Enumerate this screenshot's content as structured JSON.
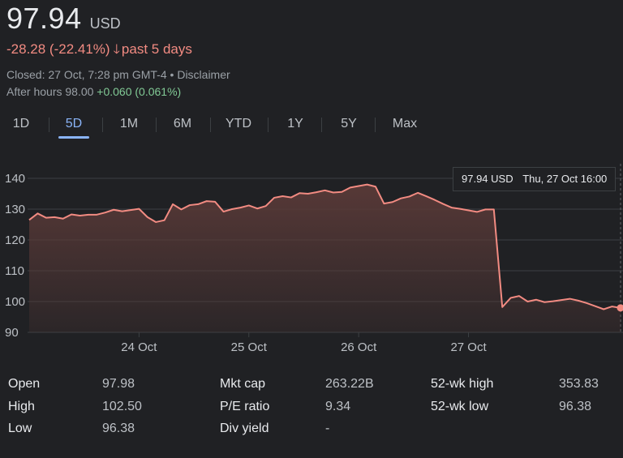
{
  "quote": {
    "price": "97.94",
    "currency": "USD",
    "change": "-28.28 (-22.41%)",
    "period": "past 5 days",
    "closed_text": "Closed: 27 Oct, 7:28 pm GMT-4",
    "disclaimer": "Disclaimer",
    "after_hours_label": "After hours 98.00",
    "after_hours_change": "+0.060 (0.061%)"
  },
  "tabs": [
    "1D",
    "5D",
    "1M",
    "6M",
    "YTD",
    "1Y",
    "5Y",
    "Max"
  ],
  "active_tab": "5D",
  "tooltip": {
    "price": "97.94 USD",
    "time": "Thu, 27 Oct 16:00"
  },
  "colors": {
    "line": "#f28b82",
    "fill_top": "#5a3a38",
    "grid": "#3c4043",
    "accent": "#8ab4f8",
    "positive": "#81c995",
    "negative": "#f28b82"
  },
  "chart_data": {
    "type": "area",
    "y_ticks": [
      "140",
      "130",
      "120",
      "110",
      "100",
      "90"
    ],
    "ylim": [
      90,
      140
    ],
    "x_tick_labels": [
      "24 Oct",
      "25 Oct",
      "26 Oct",
      "27 Oct"
    ],
    "x_tick_index": [
      13,
      26,
      39,
      52
    ],
    "series": [
      {
        "values": [
          126.5,
          128.6,
          127.2,
          127.4,
          126.9,
          128.3,
          127.9,
          128.2,
          128.2,
          128.9,
          129.8,
          129.3,
          129.7,
          130.1,
          127.4,
          125.8,
          126.4,
          131.6,
          129.9,
          131.3,
          131.6,
          132.6,
          132.4,
          129.2,
          130.0,
          130.5,
          131.2,
          130.2,
          131.0,
          133.7,
          134.2,
          133.8,
          135.2,
          135.0,
          135.5,
          136.1,
          135.4,
          135.6,
          137.0,
          137.5,
          138.0,
          137.3,
          131.8,
          132.3,
          133.5,
          134.1,
          135.3,
          134.2,
          133.0,
          131.7,
          130.5,
          130.1,
          129.6,
          129.1,
          129.9,
          129.9,
          98.2,
          101.2,
          101.8,
          100.0,
          100.6,
          99.8,
          100.1,
          100.5,
          100.9,
          100.3,
          99.5,
          98.5,
          97.5,
          98.4,
          97.94
        ]
      }
    ]
  },
  "stats": [
    {
      "label": "Open",
      "value": "97.98"
    },
    {
      "label": "High",
      "value": "102.50"
    },
    {
      "label": "Low",
      "value": "96.38"
    },
    {
      "label": "Mkt cap",
      "value": "263.22B"
    },
    {
      "label": "P/E ratio",
      "value": "9.34"
    },
    {
      "label": "Div yield",
      "value": "-"
    },
    {
      "label": "52-wk high",
      "value": "353.83"
    },
    {
      "label": "52-wk low",
      "value": "96.38"
    }
  ]
}
